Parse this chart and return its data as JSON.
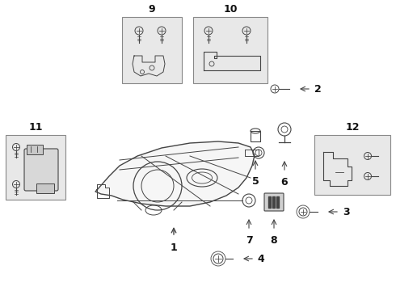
{
  "bg_color": "#ffffff",
  "line_color": "#444444",
  "box_bg": "#e8e8e8",
  "box_edge": "#888888",
  "figsize": [
    4.9,
    3.6
  ],
  "dpi": 100
}
